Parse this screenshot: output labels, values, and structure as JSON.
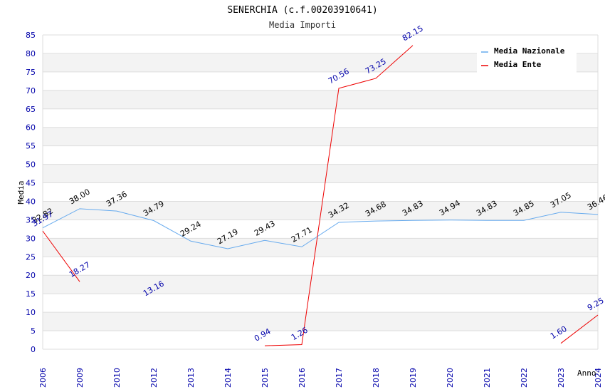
{
  "chart_data": {
    "type": "line",
    "title": "SENERCHIA (c.f.00203910641)",
    "subtitle": "Media Importi",
    "xlabel": "Anno",
    "ylabel": "Media",
    "categories": [
      "2006",
      "2009",
      "2010",
      "2012",
      "2013",
      "2014",
      "2015",
      "2016",
      "2017",
      "2018",
      "2019",
      "2020",
      "2021",
      "2022",
      "2023",
      "2024"
    ],
    "ylim": [
      0,
      85
    ],
    "yticks": [
      0,
      5,
      10,
      15,
      20,
      25,
      30,
      35,
      40,
      45,
      50,
      55,
      60,
      65,
      70,
      75,
      80,
      85
    ],
    "grid": true,
    "legend_position": "top-right",
    "series": [
      {
        "name": "Media Nazionale",
        "color": "#66aaee",
        "label_color": "#000000",
        "values": [
          32.82,
          38.0,
          37.36,
          34.79,
          29.24,
          27.19,
          29.43,
          27.71,
          34.32,
          34.68,
          34.83,
          34.94,
          34.83,
          34.85,
          37.05,
          36.46
        ],
        "labels": [
          "32.82",
          "38.00",
          "37.36",
          "34.79",
          "29.24",
          "27.19",
          "29.43",
          "27.71",
          "34.32",
          "34.68",
          "34.83",
          "34.94",
          "34.83",
          "34.85",
          "37.05",
          "36.46"
        ]
      },
      {
        "name": "Media Ente",
        "color": "#ee0000",
        "label_color": "#0000aa",
        "values": [
          31.97,
          18.27,
          null,
          13.16,
          null,
          null,
          0.94,
          1.26,
          70.56,
          73.25,
          82.15,
          null,
          null,
          null,
          1.6,
          9.25
        ],
        "labels": [
          "31.97",
          "18.27",
          null,
          "13.16",
          null,
          null,
          "0.94",
          "1.26",
          "70.56",
          "73.25",
          "82.15",
          null,
          null,
          null,
          "1.60",
          "9.25"
        ]
      }
    ]
  }
}
